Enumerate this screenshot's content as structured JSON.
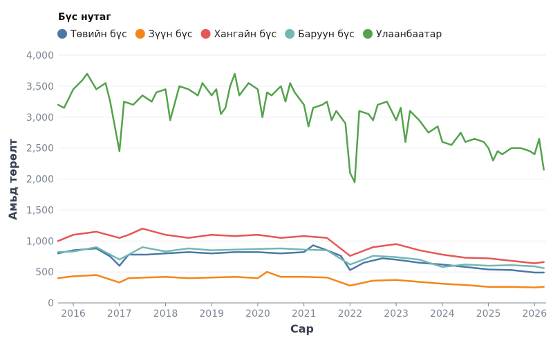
{
  "chart_data": {
    "type": "line",
    "xlabel": "Сар",
    "ylabel": "Амьд төрөлт",
    "legend": {
      "title": "Бүс нутаг",
      "placement": "top-left"
    },
    "grid": {
      "horizontal": true,
      "vertical": false
    },
    "x_ticks": [
      "2016",
      "2017",
      "2018",
      "2019",
      "2020",
      "2021",
      "2022",
      "2023",
      "2024",
      "2025",
      "2026"
    ],
    "y_ticks": [
      "0",
      "500",
      "1,000",
      "1,500",
      "2,000",
      "2,500",
      "3,000",
      "3,500",
      "4,000"
    ],
    "xlim": [
      2015.67,
      2026.25
    ],
    "ylim": [
      0,
      4000
    ],
    "series": [
      {
        "name": "Төвийн бүс",
        "color": "#4c78a8",
        "points": [
          [
            2015.67,
            800
          ],
          [
            2016.0,
            850
          ],
          [
            2016.5,
            880
          ],
          [
            2016.8,
            750
          ],
          [
            2017.0,
            600
          ],
          [
            2017.2,
            780
          ],
          [
            2017.6,
            780
          ],
          [
            2018.0,
            800
          ],
          [
            2018.5,
            820
          ],
          [
            2019.0,
            800
          ],
          [
            2019.5,
            820
          ],
          [
            2020.0,
            820
          ],
          [
            2020.5,
            800
          ],
          [
            2021.0,
            820
          ],
          [
            2021.2,
            930
          ],
          [
            2021.5,
            850
          ],
          [
            2021.8,
            760
          ],
          [
            2022.0,
            530
          ],
          [
            2022.3,
            650
          ],
          [
            2022.7,
            720
          ],
          [
            2023.0,
            700
          ],
          [
            2023.5,
            650
          ],
          [
            2024.0,
            620
          ],
          [
            2024.5,
            580
          ],
          [
            2025.0,
            540
          ],
          [
            2025.5,
            530
          ],
          [
            2026.0,
            490
          ],
          [
            2026.2,
            490
          ]
        ]
      },
      {
        "name": "Зүүн бүс",
        "color": "#f58518",
        "points": [
          [
            2015.67,
            400
          ],
          [
            2016.0,
            430
          ],
          [
            2016.5,
            450
          ],
          [
            2017.0,
            330
          ],
          [
            2017.2,
            400
          ],
          [
            2018.0,
            420
          ],
          [
            2018.5,
            400
          ],
          [
            2019.0,
            410
          ],
          [
            2019.5,
            420
          ],
          [
            2020.0,
            400
          ],
          [
            2020.2,
            500
          ],
          [
            2020.5,
            420
          ],
          [
            2021.0,
            420
          ],
          [
            2021.5,
            410
          ],
          [
            2022.0,
            280
          ],
          [
            2022.5,
            360
          ],
          [
            2023.0,
            370
          ],
          [
            2023.5,
            340
          ],
          [
            2024.0,
            310
          ],
          [
            2024.5,
            290
          ],
          [
            2025.0,
            260
          ],
          [
            2025.5,
            260
          ],
          [
            2026.0,
            250
          ],
          [
            2026.2,
            260
          ]
        ]
      },
      {
        "name": "Хангайн бүс",
        "color": "#e45756",
        "points": [
          [
            2015.67,
            1000
          ],
          [
            2016.0,
            1100
          ],
          [
            2016.5,
            1150
          ],
          [
            2017.0,
            1050
          ],
          [
            2017.2,
            1100
          ],
          [
            2017.5,
            1200
          ],
          [
            2018.0,
            1100
          ],
          [
            2018.5,
            1050
          ],
          [
            2019.0,
            1100
          ],
          [
            2019.5,
            1080
          ],
          [
            2020.0,
            1100
          ],
          [
            2020.5,
            1050
          ],
          [
            2021.0,
            1080
          ],
          [
            2021.5,
            1050
          ],
          [
            2022.0,
            760
          ],
          [
            2022.5,
            900
          ],
          [
            2023.0,
            950
          ],
          [
            2023.5,
            850
          ],
          [
            2024.0,
            780
          ],
          [
            2024.5,
            730
          ],
          [
            2025.0,
            720
          ],
          [
            2025.5,
            680
          ],
          [
            2026.0,
            640
          ],
          [
            2026.2,
            660
          ]
        ]
      },
      {
        "name": "Баруун бүс",
        "color": "#72b7b2",
        "points": [
          [
            2015.67,
            820
          ],
          [
            2016.0,
            830
          ],
          [
            2016.5,
            900
          ],
          [
            2017.0,
            700
          ],
          [
            2017.5,
            900
          ],
          [
            2018.0,
            830
          ],
          [
            2018.5,
            880
          ],
          [
            2019.0,
            850
          ],
          [
            2019.5,
            860
          ],
          [
            2020.0,
            870
          ],
          [
            2020.5,
            880
          ],
          [
            2021.0,
            860
          ],
          [
            2021.5,
            850
          ],
          [
            2022.0,
            620
          ],
          [
            2022.5,
            760
          ],
          [
            2023.0,
            740
          ],
          [
            2023.5,
            700
          ],
          [
            2024.0,
            580
          ],
          [
            2024.5,
            620
          ],
          [
            2025.0,
            600
          ],
          [
            2025.5,
            610
          ],
          [
            2026.0,
            590
          ],
          [
            2026.2,
            560
          ]
        ]
      },
      {
        "name": "Улаанбаатар",
        "color": "#54a24b",
        "points": [
          [
            2015.67,
            3200
          ],
          [
            2015.8,
            3150
          ],
          [
            2016.0,
            3450
          ],
          [
            2016.2,
            3600
          ],
          [
            2016.3,
            3700
          ],
          [
            2016.5,
            3450
          ],
          [
            2016.7,
            3550
          ],
          [
            2016.8,
            3250
          ],
          [
            2017.0,
            2450
          ],
          [
            2017.1,
            3250
          ],
          [
            2017.3,
            3200
          ],
          [
            2017.5,
            3350
          ],
          [
            2017.7,
            3250
          ],
          [
            2017.8,
            3400
          ],
          [
            2018.0,
            3450
          ],
          [
            2018.1,
            2950
          ],
          [
            2018.3,
            3500
          ],
          [
            2018.5,
            3450
          ],
          [
            2018.7,
            3350
          ],
          [
            2018.8,
            3550
          ],
          [
            2019.0,
            3350
          ],
          [
            2019.1,
            3450
          ],
          [
            2019.2,
            3050
          ],
          [
            2019.3,
            3150
          ],
          [
            2019.4,
            3500
          ],
          [
            2019.5,
            3700
          ],
          [
            2019.6,
            3350
          ],
          [
            2019.8,
            3550
          ],
          [
            2020.0,
            3450
          ],
          [
            2020.1,
            3000
          ],
          [
            2020.2,
            3400
          ],
          [
            2020.3,
            3350
          ],
          [
            2020.5,
            3500
          ],
          [
            2020.6,
            3250
          ],
          [
            2020.7,
            3550
          ],
          [
            2020.8,
            3400
          ],
          [
            2021.0,
            3200
          ],
          [
            2021.1,
            2850
          ],
          [
            2021.2,
            3150
          ],
          [
            2021.4,
            3200
          ],
          [
            2021.5,
            3250
          ],
          [
            2021.6,
            2950
          ],
          [
            2021.7,
            3100
          ],
          [
            2021.9,
            2900
          ],
          [
            2022.0,
            2100
          ],
          [
            2022.1,
            1950
          ],
          [
            2022.2,
            3100
          ],
          [
            2022.4,
            3050
          ],
          [
            2022.5,
            2950
          ],
          [
            2022.6,
            3200
          ],
          [
            2022.8,
            3250
          ],
          [
            2023.0,
            2950
          ],
          [
            2023.1,
            3150
          ],
          [
            2023.2,
            2600
          ],
          [
            2023.3,
            3100
          ],
          [
            2023.5,
            2950
          ],
          [
            2023.7,
            2750
          ],
          [
            2023.9,
            2850
          ],
          [
            2024.0,
            2600
          ],
          [
            2024.2,
            2550
          ],
          [
            2024.4,
            2750
          ],
          [
            2024.5,
            2600
          ],
          [
            2024.7,
            2650
          ],
          [
            2024.9,
            2600
          ],
          [
            2025.0,
            2500
          ],
          [
            2025.1,
            2300
          ],
          [
            2025.2,
            2450
          ],
          [
            2025.3,
            2400
          ],
          [
            2025.4,
            2450
          ],
          [
            2025.5,
            2500
          ],
          [
            2025.7,
            2500
          ],
          [
            2025.9,
            2450
          ],
          [
            2026.0,
            2400
          ],
          [
            2026.1,
            2650
          ],
          [
            2026.2,
            2150
          ]
        ]
      }
    ]
  }
}
